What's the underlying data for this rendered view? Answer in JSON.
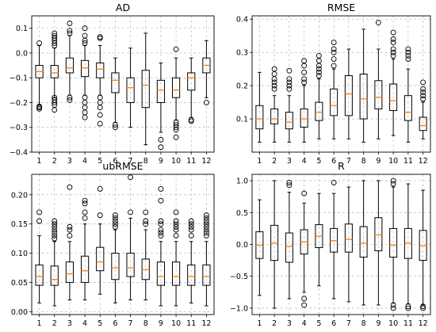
{
  "chart_data": [
    {
      "type": "box",
      "title": "AD",
      "categories": [
        "1",
        "2",
        "3",
        "4",
        "5",
        "6",
        "7",
        "8",
        "9",
        "10",
        "11",
        "12"
      ],
      "ylim": [
        -0.4,
        0.15
      ],
      "yticks": [
        -0.4,
        -0.3,
        -0.2,
        -0.1,
        0.0,
        0.1
      ],
      "ytick_labels": [
        "−0.4",
        "−0.3",
        "−0.2",
        "−0.1",
        "0.0",
        "0.1"
      ],
      "grid": true,
      "boxes": [
        {
          "whislo": -0.21,
          "q1": -0.1,
          "med": -0.075,
          "q3": -0.05,
          "whishi": 0.03,
          "fliers": [
            0.04,
            -0.215,
            -0.22,
            -0.225
          ]
        },
        {
          "whislo": -0.18,
          "q1": -0.1,
          "med": -0.08,
          "q3": -0.05,
          "whishi": 0.02,
          "fliers": [
            0.03,
            0.04,
            0.05,
            0.06,
            0.07,
            0.08,
            -0.18,
            -0.19,
            -0.2,
            -0.21,
            -0.23
          ]
        },
        {
          "whislo": -0.17,
          "q1": -0.08,
          "med": -0.06,
          "q3": -0.02,
          "whishi": 0.07,
          "fliers": [
            0.08,
            0.09,
            0.12,
            -0.18,
            -0.19
          ]
        },
        {
          "whislo": -0.17,
          "q1": -0.095,
          "med": -0.06,
          "q3": -0.03,
          "whishi": 0.03,
          "fliers": [
            0.04,
            0.05,
            0.07,
            0.1,
            -0.18,
            -0.2,
            -0.22,
            -0.24,
            -0.26
          ]
        },
        {
          "whislo": -0.17,
          "q1": -0.1,
          "med": -0.065,
          "q3": -0.04,
          "whishi": 0.03,
          "fliers": [
            0.06,
            0.065,
            -0.18,
            -0.2,
            -0.22,
            -0.25,
            -0.285
          ]
        },
        {
          "whislo": -0.28,
          "q1": -0.16,
          "med": -0.11,
          "q3": -0.08,
          "whishi": -0.02,
          "fliers": [
            -0.29,
            -0.3
          ]
        },
        {
          "whislo": -0.3,
          "q1": -0.2,
          "med": -0.14,
          "q3": -0.1,
          "whishi": 0.02,
          "fliers": []
        },
        {
          "whislo": -0.37,
          "q1": -0.22,
          "med": -0.13,
          "q3": -0.07,
          "whishi": 0.08,
          "fliers": []
        },
        {
          "whislo": -0.32,
          "q1": -0.2,
          "med": -0.15,
          "q3": -0.11,
          "whishi": -0.04,
          "fliers": [
            -0.35,
            -0.38
          ]
        },
        {
          "whislo": -0.27,
          "q1": -0.18,
          "med": -0.15,
          "q3": -0.1,
          "whishi": -0.02,
          "fliers": [
            -0.28,
            -0.29,
            -0.3,
            -0.31,
            -0.34,
            0.015
          ]
        },
        {
          "whislo": -0.26,
          "q1": -0.15,
          "med": -0.1,
          "q3": -0.08,
          "whishi": -0.02,
          "fliers": [
            -0.27,
            -0.275
          ]
        },
        {
          "whislo": -0.18,
          "q1": -0.08,
          "med": -0.05,
          "q3": -0.02,
          "whishi": 0.05,
          "fliers": [
            -0.2
          ]
        }
      ]
    },
    {
      "type": "box",
      "title": "RMSE",
      "categories": [
        "1",
        "2",
        "3",
        "4",
        "5",
        "6",
        "7",
        "8",
        "9",
        "10",
        "11",
        "12"
      ],
      "ylim": [
        0.0,
        0.41
      ],
      "yticks": [
        0.1,
        0.2,
        0.3,
        0.4
      ],
      "ytick_labels": [
        "0.1",
        "0.2",
        "0.3",
        "0.4"
      ],
      "grid": true,
      "boxes": [
        {
          "whislo": 0.03,
          "q1": 0.07,
          "med": 0.1,
          "q3": 0.14,
          "whishi": 0.24,
          "fliers": []
        },
        {
          "whislo": 0.03,
          "q1": 0.085,
          "med": 0.1,
          "q3": 0.13,
          "whishi": 0.17,
          "fliers": [
            0.19,
            0.2,
            0.21,
            0.22,
            0.235,
            0.25
          ]
        },
        {
          "whislo": 0.03,
          "q1": 0.07,
          "med": 0.09,
          "q3": 0.12,
          "whishi": 0.17,
          "fliers": [
            0.19,
            0.2,
            0.21,
            0.22,
            0.245
          ]
        },
        {
          "whislo": 0.03,
          "q1": 0.075,
          "med": 0.1,
          "q3": 0.13,
          "whishi": 0.2,
          "fliers": [
            0.21,
            0.22,
            0.24,
            0.26,
            0.275
          ]
        },
        {
          "whislo": 0.04,
          "q1": 0.095,
          "med": 0.12,
          "q3": 0.15,
          "whishi": 0.22,
          "fliers": [
            0.23,
            0.24,
            0.25,
            0.26,
            0.275,
            0.29
          ]
        },
        {
          "whislo": 0.04,
          "q1": 0.11,
          "med": 0.14,
          "q3": 0.19,
          "whishi": 0.25,
          "fliers": [
            0.26,
            0.28,
            0.3,
            0.31,
            0.33
          ]
        },
        {
          "whislo": 0.04,
          "q1": 0.11,
          "med": 0.175,
          "q3": 0.23,
          "whishi": 0.31,
          "fliers": []
        },
        {
          "whislo": 0.03,
          "q1": 0.1,
          "med": 0.16,
          "q3": 0.235,
          "whishi": 0.37,
          "fliers": []
        },
        {
          "whislo": 0.04,
          "q1": 0.13,
          "med": 0.165,
          "q3": 0.215,
          "whishi": 0.31,
          "fliers": [
            0.39
          ]
        },
        {
          "whislo": 0.05,
          "q1": 0.125,
          "med": 0.155,
          "q3": 0.205,
          "whishi": 0.28,
          "fliers": [
            0.29,
            0.3,
            0.31,
            0.33,
            0.34,
            0.36
          ]
        },
        {
          "whislo": 0.03,
          "q1": 0.095,
          "med": 0.12,
          "q3": 0.17,
          "whishi": 0.25,
          "fliers": [
            0.28,
            0.29,
            0.3,
            0.31
          ]
        },
        {
          "whislo": 0.04,
          "q1": 0.065,
          "med": 0.08,
          "q3": 0.105,
          "whishi": 0.15,
          "fliers": [
            0.16,
            0.17,
            0.18,
            0.19,
            0.21
          ]
        }
      ]
    },
    {
      "type": "box",
      "title": "ubRMSE",
      "categories": [
        "1",
        "2",
        "3",
        "4",
        "5",
        "6",
        "7",
        "8",
        "9",
        "10",
        "11",
        "12"
      ],
      "ylim": [
        -0.005,
        0.235
      ],
      "yticks": [
        0.0,
        0.05,
        0.1,
        0.15,
        0.2
      ],
      "ytick_labels": [
        "0.00",
        "0.05",
        "0.10",
        "0.15",
        "0.20"
      ],
      "grid": true,
      "boxes": [
        {
          "whislo": 0.015,
          "q1": 0.045,
          "med": 0.06,
          "q3": 0.08,
          "whishi": 0.13,
          "fliers": [
            0.155,
            0.17
          ]
        },
        {
          "whislo": 0.01,
          "q1": 0.045,
          "med": 0.055,
          "q3": 0.078,
          "whishi": 0.12,
          "fliers": [
            0.125,
            0.13,
            0.135,
            0.14,
            0.145,
            0.15,
            0.155
          ]
        },
        {
          "whislo": 0.02,
          "q1": 0.05,
          "med": 0.065,
          "q3": 0.085,
          "whishi": 0.12,
          "fliers": [
            0.13,
            0.14,
            0.145,
            0.213
          ]
        },
        {
          "whislo": 0.02,
          "q1": 0.05,
          "med": 0.07,
          "q3": 0.095,
          "whishi": 0.15,
          "fliers": [
            0.16,
            0.17,
            0.185,
            0.19
          ]
        },
        {
          "whislo": 0.03,
          "q1": 0.07,
          "med": 0.085,
          "q3": 0.11,
          "whishi": 0.15,
          "fliers": [
            0.165,
            0.21
          ]
        },
        {
          "whislo": 0.015,
          "q1": 0.055,
          "med": 0.075,
          "q3": 0.1,
          "whishi": 0.14,
          "fliers": [
            0.145,
            0.15,
            0.155,
            0.16,
            0.165
          ]
        },
        {
          "whislo": 0.02,
          "q1": 0.06,
          "med": 0.075,
          "q3": 0.1,
          "whishi": 0.16,
          "fliers": [
            0.17,
            0.23
          ]
        },
        {
          "whislo": 0.02,
          "q1": 0.055,
          "med": 0.072,
          "q3": 0.09,
          "whishi": 0.14,
          "fliers": [
            0.15,
            0.155,
            0.17
          ]
        },
        {
          "whislo": 0.01,
          "q1": 0.045,
          "med": 0.06,
          "q3": 0.085,
          "whishi": 0.12,
          "fliers": [
            0.13,
            0.135,
            0.14,
            0.15,
            0.155,
            0.19,
            0.21
          ]
        },
        {
          "whislo": 0.01,
          "q1": 0.045,
          "med": 0.06,
          "q3": 0.085,
          "whishi": 0.12,
          "fliers": [
            0.13,
            0.14,
            0.145,
            0.15,
            0.155,
            0.17
          ]
        },
        {
          "whislo": 0.015,
          "q1": 0.045,
          "med": 0.06,
          "q3": 0.08,
          "whishi": 0.12,
          "fliers": [
            0.13,
            0.14,
            0.145,
            0.15,
            0.155
          ]
        },
        {
          "whislo": 0.01,
          "q1": 0.045,
          "med": 0.06,
          "q3": 0.08,
          "whishi": 0.12,
          "fliers": [
            0.13,
            0.135,
            0.14,
            0.145,
            0.15,
            0.155,
            0.16,
            0.165
          ]
        }
      ]
    },
    {
      "type": "box",
      "title": "R",
      "categories": [
        "1",
        "2",
        "3",
        "4",
        "5",
        "6",
        "7",
        "8",
        "9",
        "10",
        "11",
        "12"
      ],
      "ylim": [
        -1.1,
        1.1
      ],
      "yticks": [
        -1.0,
        -0.5,
        0.0,
        0.5,
        1.0
      ],
      "ytick_labels": [
        "−1.0",
        "−0.5",
        "0.0",
        "0.5",
        "1.0"
      ],
      "grid": true,
      "boxes": [
        {
          "whislo": -0.8,
          "q1": -0.22,
          "med": -0.01,
          "q3": 0.2,
          "whishi": 0.7,
          "fliers": []
        },
        {
          "whislo": -1.0,
          "q1": -0.25,
          "med": 0.02,
          "q3": 0.3,
          "whishi": 1.0,
          "fliers": []
        },
        {
          "whislo": -0.85,
          "q1": -0.28,
          "med": -0.03,
          "q3": 0.18,
          "whishi": 0.82,
          "fliers": [
            0.93,
            0.97
          ]
        },
        {
          "whislo": -0.75,
          "q1": -0.15,
          "med": 0.04,
          "q3": 0.23,
          "whishi": 0.65,
          "fliers": [
            0.8,
            -0.85,
            -0.95
          ]
        },
        {
          "whislo": -0.65,
          "q1": -0.05,
          "med": 0.13,
          "q3": 0.31,
          "whishi": 0.8,
          "fliers": []
        },
        {
          "whislo": -0.85,
          "q1": -0.12,
          "med": 0.06,
          "q3": 0.25,
          "whishi": 0.8,
          "fliers": [
            0.97
          ]
        },
        {
          "whislo": -0.9,
          "q1": -0.12,
          "med": 0.08,
          "q3": 0.32,
          "whishi": 0.9,
          "fliers": []
        },
        {
          "whislo": -0.95,
          "q1": -0.2,
          "med": 0.02,
          "q3": 0.28,
          "whishi": 1.0,
          "fliers": []
        },
        {
          "whislo": -0.95,
          "q1": -0.1,
          "med": 0.15,
          "q3": 0.42,
          "whishi": 1.0,
          "fliers": []
        },
        {
          "whislo": -0.92,
          "q1": -0.2,
          "med": -0.01,
          "q3": 0.25,
          "whishi": 0.9,
          "fliers": [
            0.95,
            1.0,
            -0.95,
            -1.0
          ]
        },
        {
          "whislo": -0.93,
          "q1": -0.22,
          "med": 0.02,
          "q3": 0.25,
          "whishi": 0.95,
          "fliers": [
            -0.97,
            -1.0
          ]
        },
        {
          "whislo": -0.95,
          "q1": -0.25,
          "med": -0.02,
          "q3": 0.22,
          "whishi": 0.85,
          "fliers": [
            -0.97,
            -1.0
          ]
        }
      ]
    }
  ]
}
